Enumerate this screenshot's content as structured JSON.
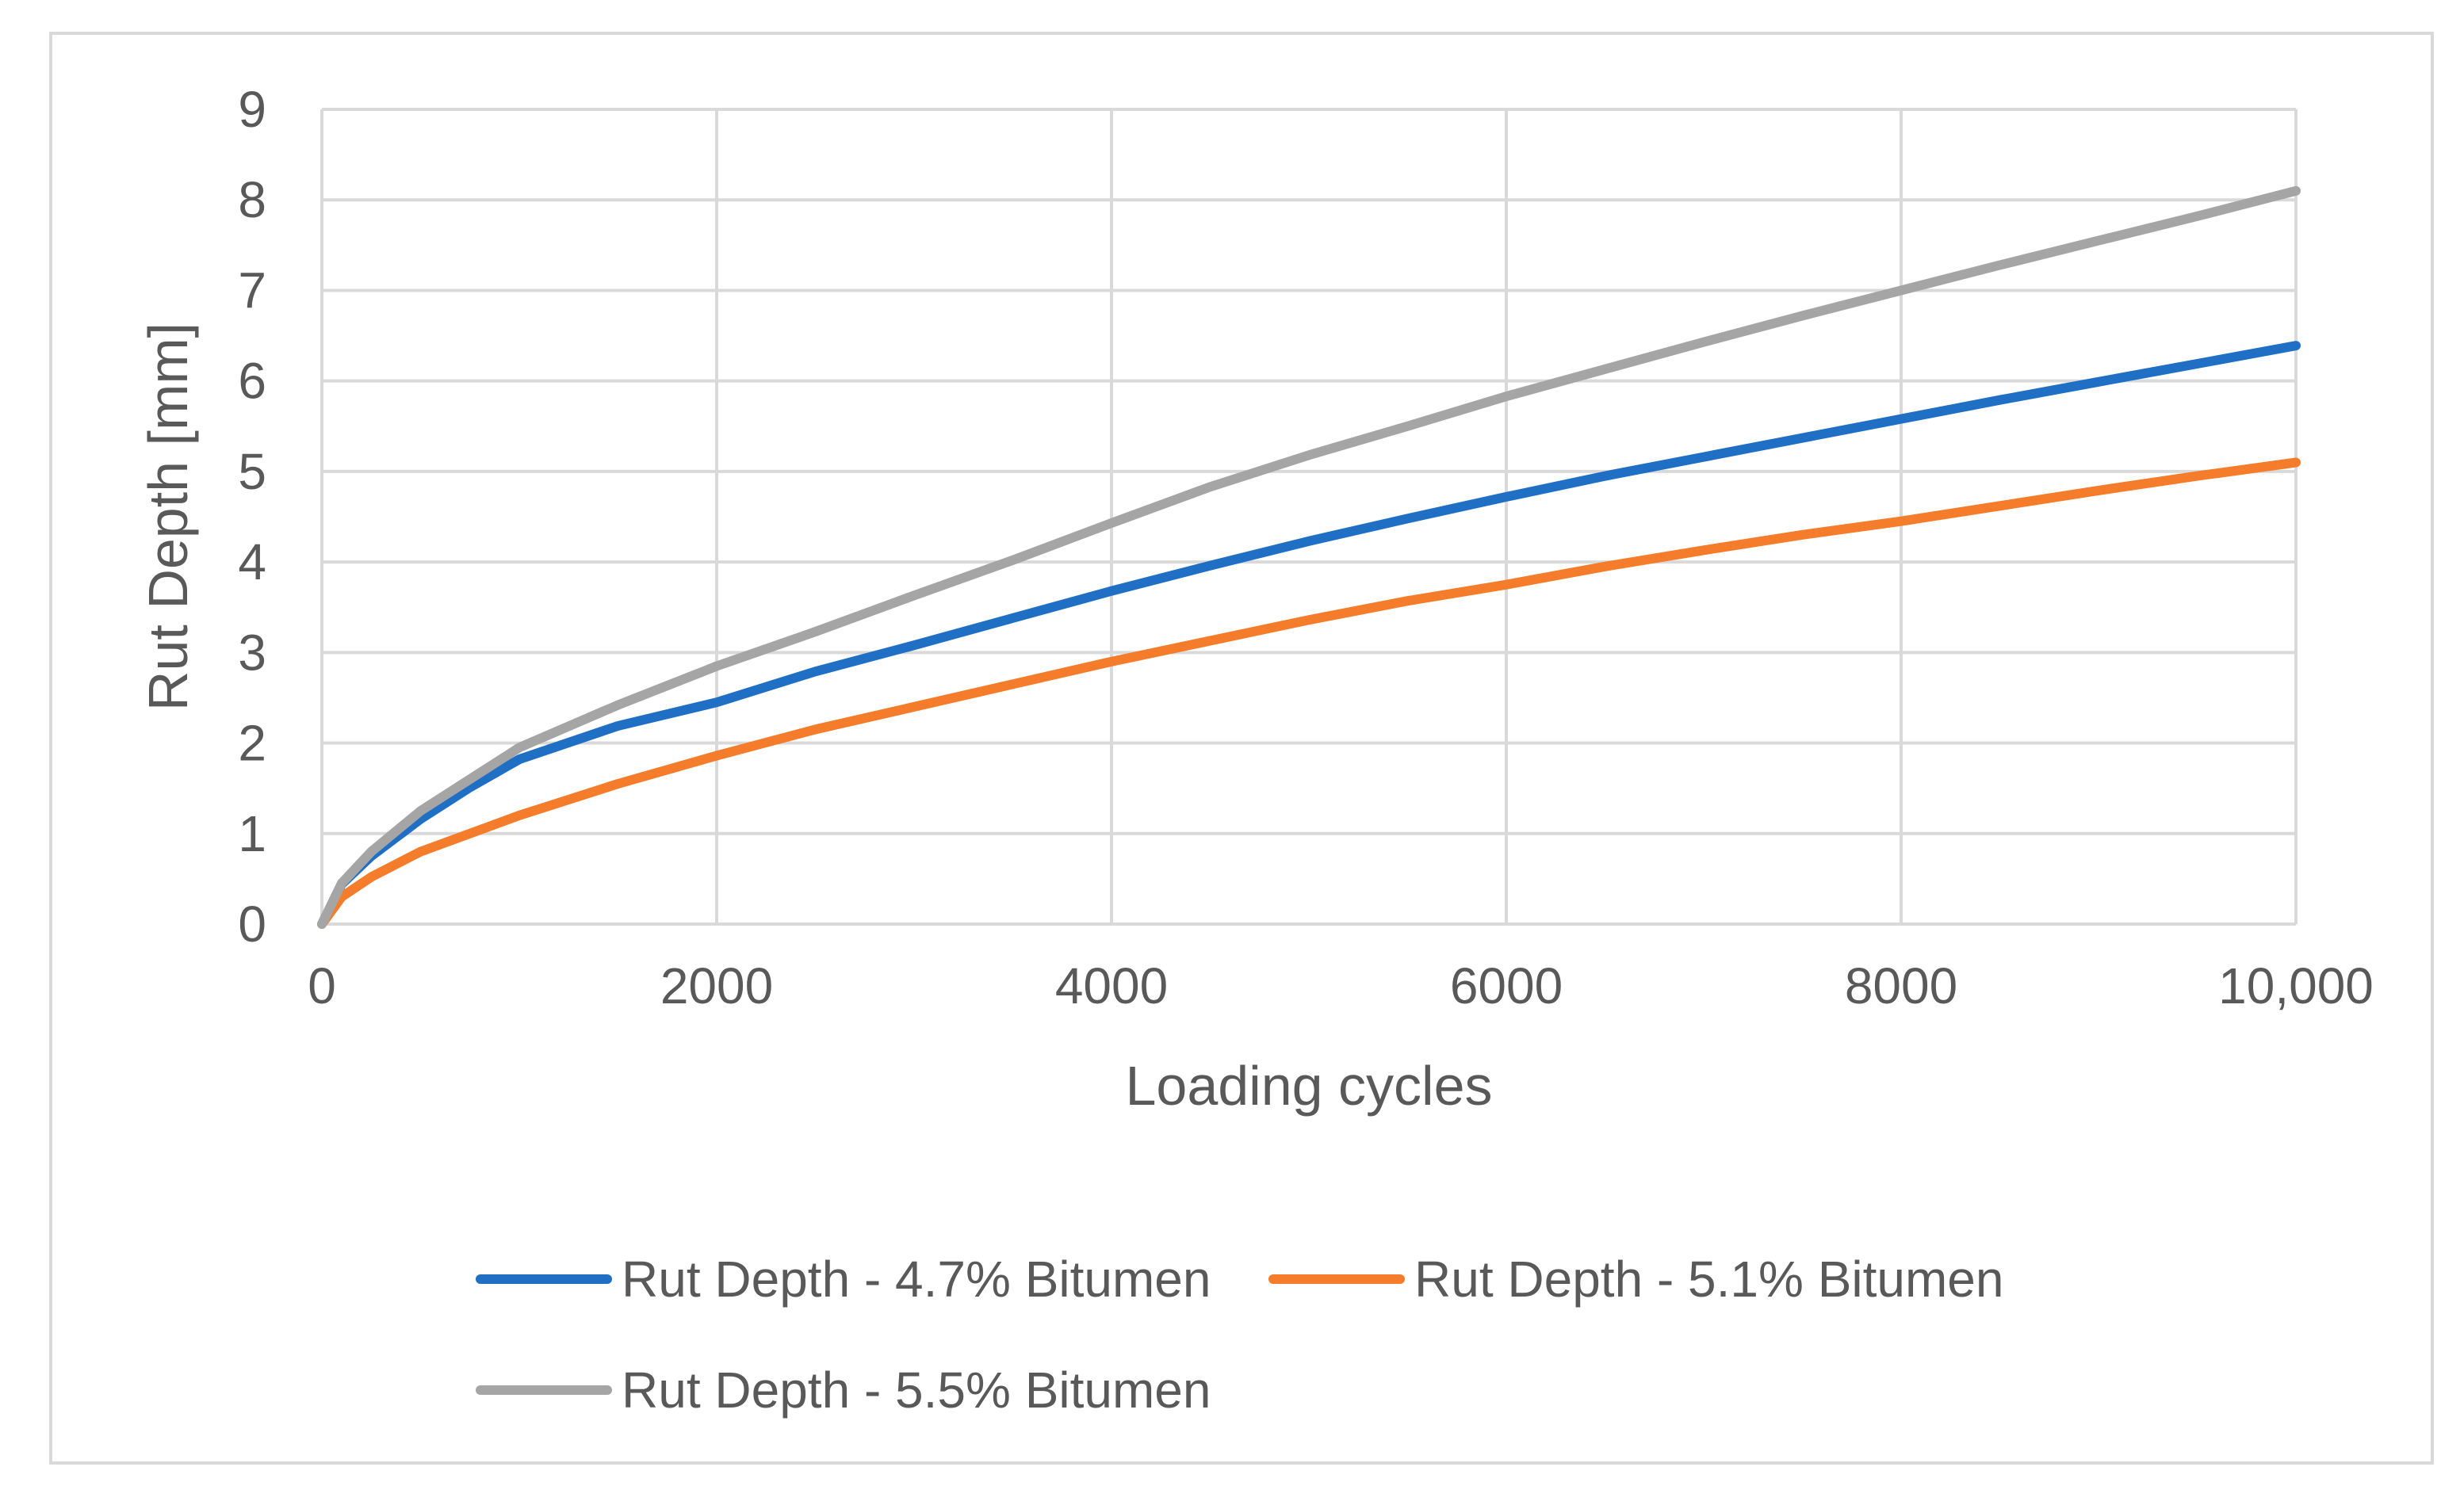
{
  "chart_data": {
    "type": "line",
    "title": "",
    "xlabel": "Loading cycles",
    "ylabel": "Rut Depth [mm]",
    "xlim": [
      0,
      10000
    ],
    "ylim": [
      0,
      9
    ],
    "x_ticks": [
      0,
      2000,
      4000,
      6000,
      8000,
      10000
    ],
    "x_tick_labels": [
      "0",
      "2000",
      "4000",
      "6000",
      "8000",
      "10,000"
    ],
    "y_ticks": [
      0,
      1,
      2,
      3,
      4,
      5,
      6,
      7,
      8,
      9
    ],
    "y_tick_labels": [
      "0",
      "1",
      "2",
      "3",
      "4",
      "5",
      "6",
      "7",
      "8",
      "9"
    ],
    "grid": true,
    "legend_position": "bottom",
    "x": [
      0,
      100,
      250,
      500,
      750,
      1000,
      1500,
      2000,
      2500,
      3000,
      3500,
      4000,
      4500,
      5000,
      5500,
      6000,
      6500,
      7000,
      7500,
      8000,
      8500,
      9000,
      9500,
      10000
    ],
    "series": [
      {
        "name": "Rut Depth - 4.7% Bitumen",
        "color": "#1f6fc4",
        "values": [
          0,
          0.44,
          0.75,
          1.16,
          1.51,
          1.82,
          2.19,
          2.45,
          2.79,
          3.08,
          3.38,
          3.68,
          3.96,
          4.23,
          4.48,
          4.72,
          4.95,
          5.16,
          5.37,
          5.58,
          5.79,
          5.99,
          6.19,
          6.39
        ]
      },
      {
        "name": "Rut Depth - 5.1% Bitumen",
        "color": "#f57c2a",
        "values": [
          0,
          0.3,
          0.52,
          0.8,
          1.0,
          1.2,
          1.55,
          1.86,
          2.15,
          2.4,
          2.65,
          2.9,
          3.13,
          3.36,
          3.57,
          3.75,
          3.95,
          4.13,
          4.3,
          4.45,
          4.62,
          4.79,
          4.95,
          5.1
        ]
      },
      {
        "name": "Rut Depth - 5.5% Bitumen",
        "color": "#a5a5a5",
        "values": [
          0,
          0.45,
          0.8,
          1.25,
          1.6,
          1.95,
          2.42,
          2.85,
          3.23,
          3.63,
          4.02,
          4.43,
          4.83,
          5.18,
          5.5,
          5.83,
          6.13,
          6.43,
          6.72,
          7.0,
          7.28,
          7.55,
          7.82,
          8.1
        ]
      }
    ]
  }
}
